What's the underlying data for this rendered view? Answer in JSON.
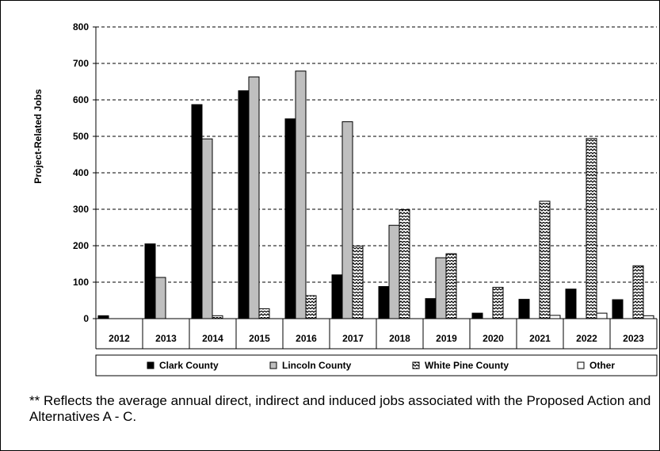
{
  "chart_data": {
    "type": "bar",
    "title": "",
    "xlabel": "",
    "ylabel": "Project-Related Jobs",
    "ylim": [
      0,
      800
    ],
    "yticks": [
      0,
      100,
      200,
      300,
      400,
      500,
      600,
      700,
      800
    ],
    "grid": "horizontal dashed",
    "legend_position": "bottom",
    "categories": [
      "2012",
      "2013",
      "2014",
      "2015",
      "2016",
      "2017",
      "2018",
      "2019",
      "2020",
      "2021",
      "2022",
      "2023"
    ],
    "series": [
      {
        "name": "Clark County",
        "fill": "#000000",
        "pattern": "solid",
        "values": [
          8,
          205,
          587,
          625,
          548,
          120,
          88,
          55,
          15,
          53,
          81,
          52
        ]
      },
      {
        "name": "Lincoln County",
        "fill": "#bfbfbf",
        "pattern": "solid",
        "values": [
          0,
          113,
          493,
          663,
          679,
          540,
          256,
          167,
          0,
          0,
          0,
          0
        ]
      },
      {
        "name": "White Pine County",
        "fill": "#ffffff",
        "pattern": "zigzag",
        "values": [
          0,
          0,
          8,
          27,
          63,
          199,
          299,
          178,
          86,
          322,
          494,
          145
        ]
      },
      {
        "name": "Other",
        "fill": "#ffffff",
        "pattern": "none",
        "values": [
          0,
          0,
          0,
          0,
          0,
          0,
          0,
          0,
          0,
          9,
          15,
          8
        ]
      }
    ]
  },
  "note": "** Reflects the average annual direct, indirect and induced jobs associated with the Proposed Action and Alternatives A - C."
}
